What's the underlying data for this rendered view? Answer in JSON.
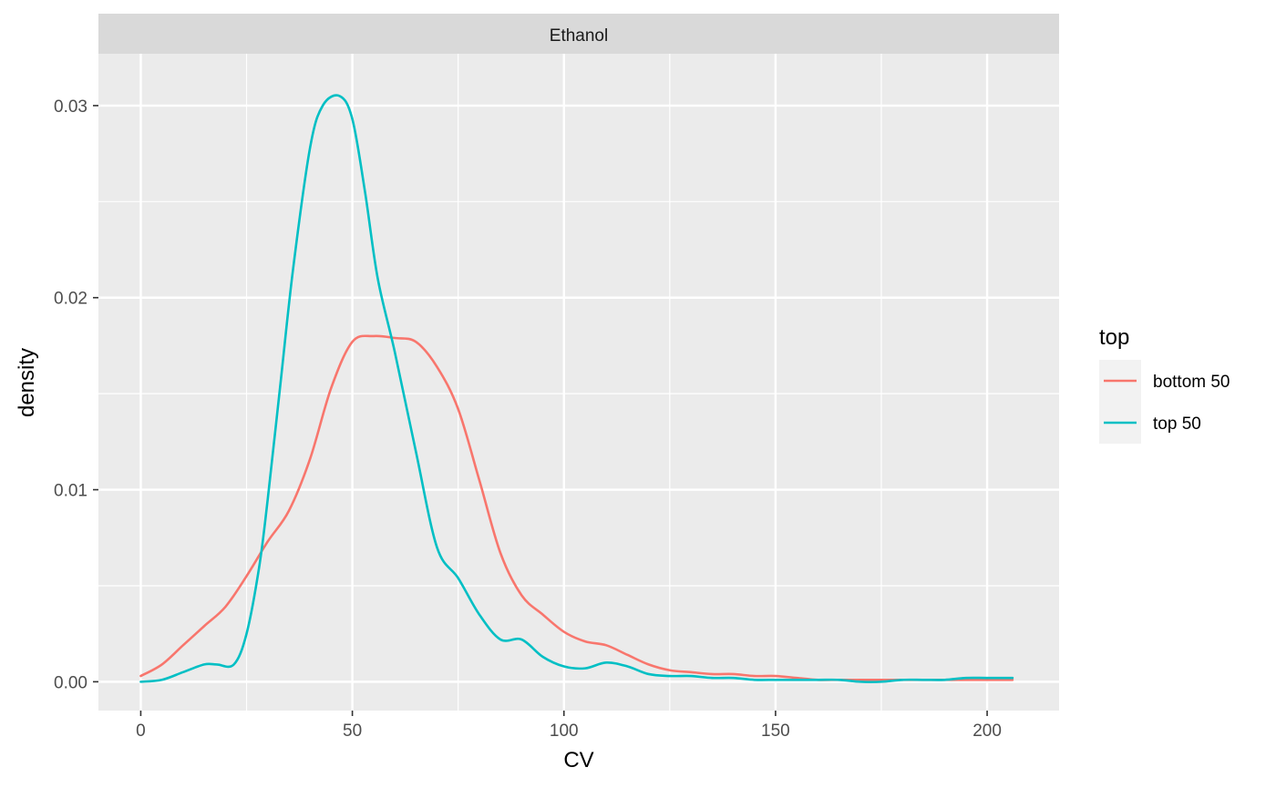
{
  "chart_data": {
    "type": "line",
    "facet": "Ethanol",
    "xlabel": "CV",
    "ylabel": "density",
    "xlim": [
      -10,
      217
    ],
    "ylim": [
      -0.0015,
      0.0327
    ],
    "x_ticks": [
      0,
      50,
      100,
      150,
      200
    ],
    "x_tick_labels": [
      "0",
      "50",
      "100",
      "150",
      "200"
    ],
    "y_ticks": [
      0.0,
      0.01,
      0.02,
      0.03
    ],
    "y_tick_labels": [
      "0.00",
      "0.01",
      "0.02",
      "0.03"
    ],
    "grid": true,
    "legend": {
      "title": "top",
      "position": "right",
      "entries": [
        "bottom 50",
        "top 50"
      ]
    },
    "series": [
      {
        "name": "bottom 50",
        "color": "#F8766D",
        "x": [
          0,
          5,
          10,
          15,
          20,
          25,
          30,
          35,
          40,
          45,
          50,
          55,
          60,
          65,
          70,
          75,
          80,
          85,
          90,
          95,
          100,
          105,
          110,
          115,
          120,
          125,
          130,
          135,
          140,
          145,
          150,
          155,
          160,
          165,
          170,
          175,
          180,
          185,
          190,
          195,
          200,
          206
        ],
        "y": [
          0.0003,
          0.0009,
          0.0019,
          0.0029,
          0.0039,
          0.0055,
          0.0073,
          0.0089,
          0.0116,
          0.0153,
          0.0177,
          0.018,
          0.0179,
          0.0177,
          0.0164,
          0.0142,
          0.0105,
          0.0067,
          0.0045,
          0.0035,
          0.0026,
          0.0021,
          0.0019,
          0.0014,
          0.0009,
          0.0006,
          0.0005,
          0.0004,
          0.0004,
          0.0003,
          0.0003,
          0.0002,
          0.0001,
          0.0001,
          0.0001,
          0.0001,
          0.0001,
          0.0001,
          0.0001,
          0.0001,
          0.0001,
          0.0001
        ]
      },
      {
        "name": "top 50",
        "color": "#00BFC4",
        "x": [
          0,
          5,
          10,
          15,
          18,
          22,
          25,
          28,
          30,
          33,
          36,
          40,
          43,
          47,
          50,
          53,
          56,
          60,
          65,
          70,
          75,
          80,
          85,
          90,
          95,
          100,
          105,
          110,
          115,
          120,
          125,
          130,
          135,
          140,
          145,
          150,
          155,
          160,
          165,
          170,
          175,
          180,
          185,
          190,
          195,
          200,
          206
        ],
        "y": [
          0.0,
          0.0001,
          0.0005,
          0.0009,
          0.0009,
          0.0009,
          0.0025,
          0.006,
          0.0095,
          0.0155,
          0.0215,
          0.0278,
          0.03,
          0.0305,
          0.0293,
          0.0255,
          0.021,
          0.0172,
          0.012,
          0.007,
          0.0054,
          0.0035,
          0.0022,
          0.0022,
          0.0013,
          0.0008,
          0.0007,
          0.001,
          0.0008,
          0.0004,
          0.0003,
          0.0003,
          0.0002,
          0.0002,
          0.0001,
          0.0001,
          0.0001,
          0.0001,
          0.0001,
          0.0,
          0.0,
          0.0001,
          0.0001,
          0.0001,
          0.0002,
          0.0002,
          0.0002
        ]
      }
    ]
  }
}
